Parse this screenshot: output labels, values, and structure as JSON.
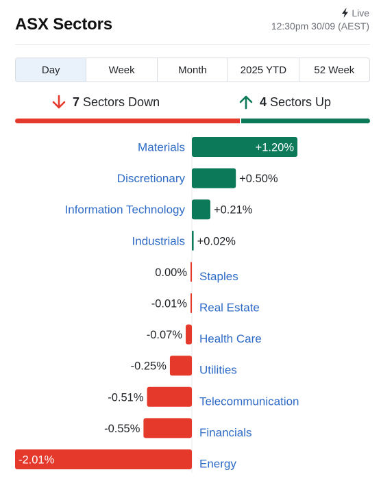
{
  "header": {
    "title": "ASX Sectors",
    "live_label": "Live",
    "timestamp": "12:30pm 30/09 (AEST)"
  },
  "tabs": [
    {
      "label": "Day",
      "active": true
    },
    {
      "label": "Week",
      "active": false
    },
    {
      "label": "Month",
      "active": false
    },
    {
      "label": "2025 YTD",
      "active": false
    },
    {
      "label": "52 Week",
      "active": false
    }
  ],
  "summary": {
    "down_count": "7",
    "down_text": "Sectors Down",
    "up_count": "4",
    "up_text": "Sectors Up"
  },
  "colors": {
    "up": "#0c7a59",
    "down": "#e5392b",
    "label": "#2d6ac6"
  },
  "chart_data": {
    "type": "bar",
    "orientation": "horizontal",
    "categories": [
      "Materials",
      "Discretionary",
      "Information Technology",
      "Industrials",
      "Staples",
      "Real Estate",
      "Health Care",
      "Utilities",
      "Telecommunication",
      "Financials",
      "Energy"
    ],
    "values": [
      1.2,
      0.5,
      0.21,
      0.02,
      0.0,
      -0.01,
      -0.07,
      -0.25,
      -0.51,
      -0.55,
      -2.01
    ],
    "value_labels": [
      "+1.20%",
      "+0.50%",
      "+0.21%",
      "+0.02%",
      "0.00%",
      "-0.01%",
      "-0.07%",
      "-0.25%",
      "-0.51%",
      "-0.55%",
      "-2.01%"
    ],
    "title": "",
    "xlabel": "",
    "ylabel": "",
    "grid": false
  }
}
